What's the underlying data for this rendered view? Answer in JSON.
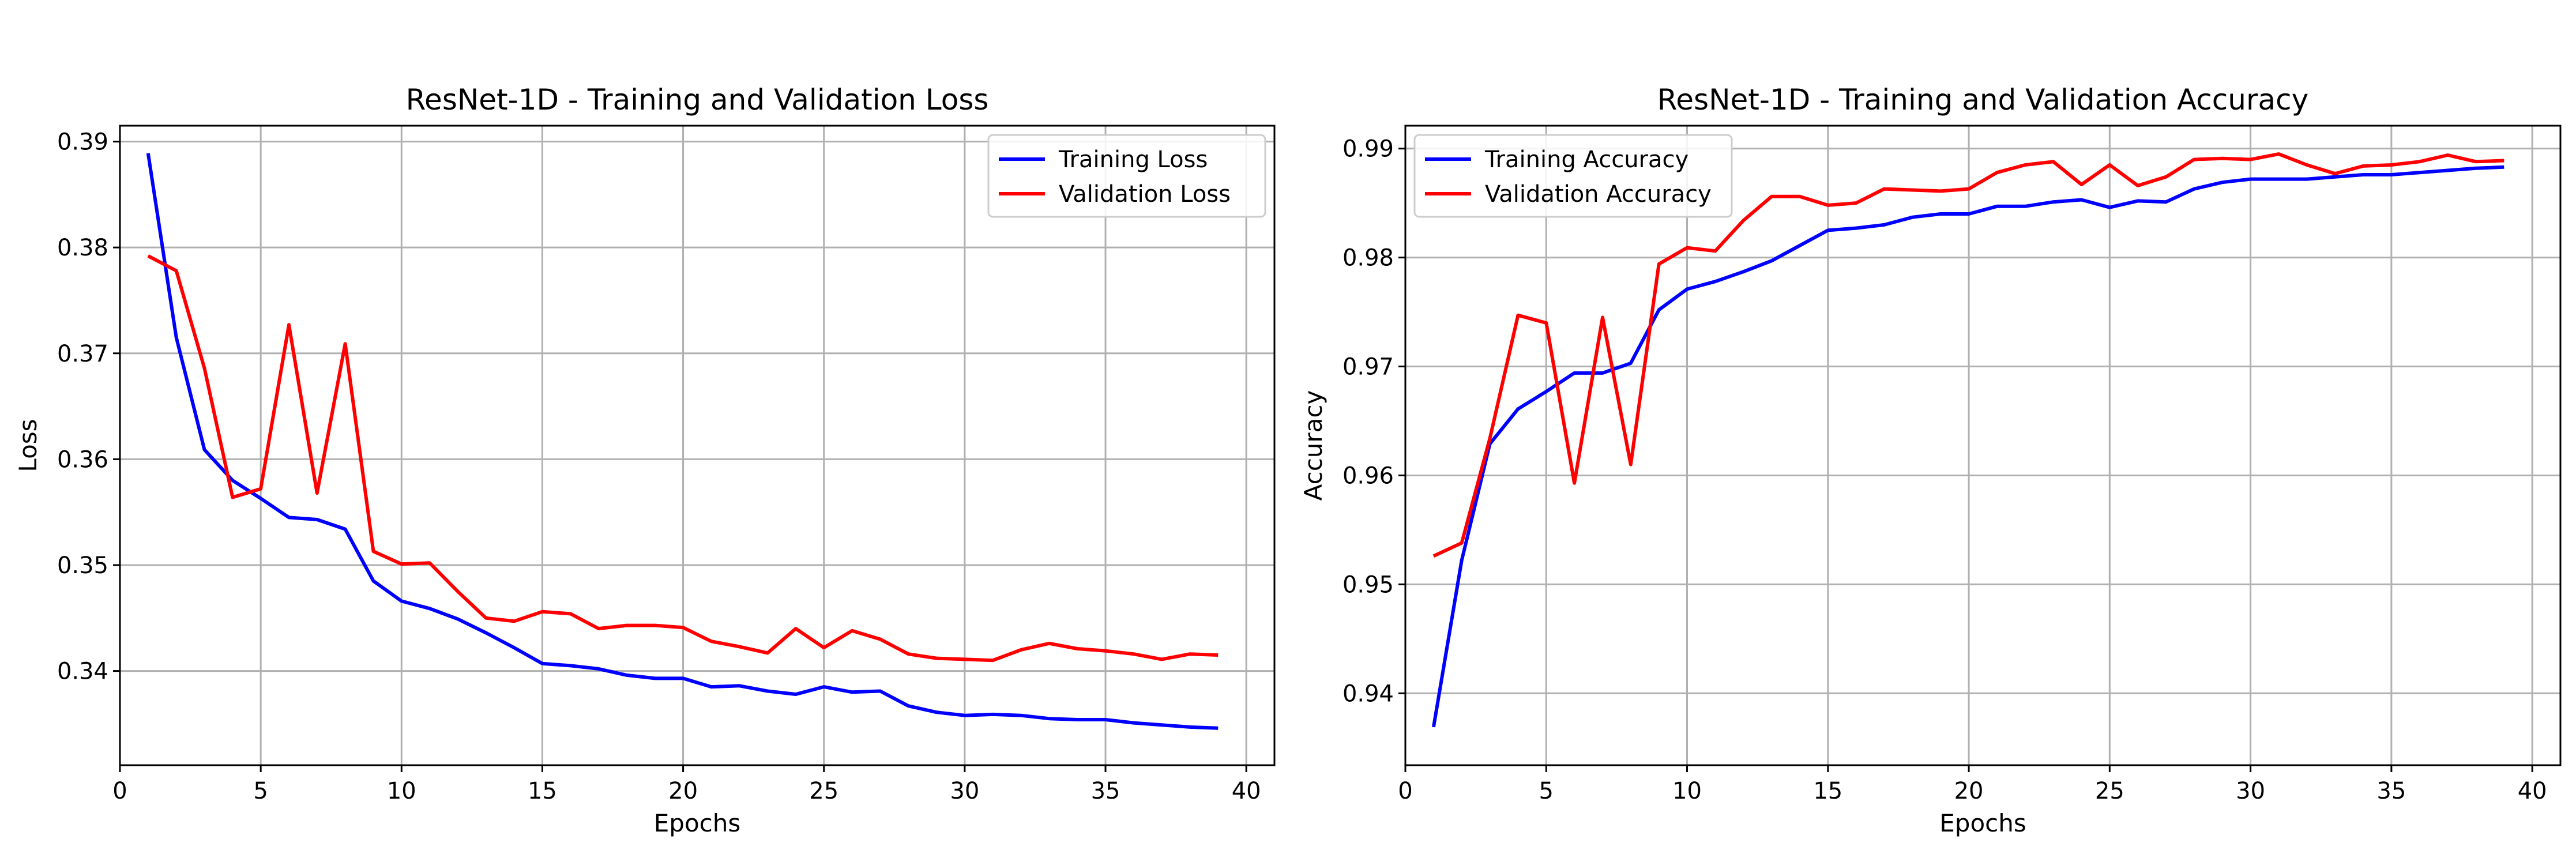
{
  "chart_data": [
    {
      "type": "line",
      "title": "ResNet-1D - Training and Validation Loss",
      "xlabel": "Epochs",
      "ylabel": "Loss",
      "xlim": [
        0,
        41
      ],
      "ylim": [
        0.3311,
        0.3915
      ],
      "xticks": [
        0,
        5,
        10,
        15,
        20,
        25,
        30,
        35,
        40
      ],
      "yticks": [
        0.34,
        0.35,
        0.36,
        0.37,
        0.38,
        0.39
      ],
      "ytick_labels": [
        "0.34",
        "0.35",
        "0.36",
        "0.37",
        "0.38",
        "0.39"
      ],
      "grid": true,
      "legend_position": "upper right",
      "x": [
        1,
        2,
        3,
        4,
        5,
        6,
        7,
        8,
        9,
        10,
        11,
        12,
        13,
        14,
        15,
        16,
        17,
        18,
        19,
        20,
        21,
        22,
        23,
        24,
        25,
        26,
        27,
        28,
        29,
        30,
        31,
        32,
        33,
        34,
        35,
        36,
        37,
        38,
        39
      ],
      "series": [
        {
          "name": "Training Loss",
          "color": "#0000ff",
          "values": [
            0.3889,
            0.3715,
            0.3609,
            0.358,
            0.3563,
            0.3545,
            0.3543,
            0.3534,
            0.3485,
            0.3466,
            0.3459,
            0.3449,
            0.3436,
            0.3422,
            0.3407,
            0.3405,
            0.3402,
            0.3396,
            0.3393,
            0.3393,
            0.3385,
            0.3386,
            0.3381,
            0.3378,
            0.3385,
            0.338,
            0.3381,
            0.3367,
            0.3361,
            0.3358,
            0.3359,
            0.3358,
            0.3355,
            0.3354,
            0.3354,
            0.3351,
            0.3349,
            0.3347,
            0.3346
          ]
        },
        {
          "name": "Validation Loss",
          "color": "#ff0000",
          "values": [
            0.3792,
            0.3778,
            0.3686,
            0.3564,
            0.3572,
            0.3727,
            0.3568,
            0.3709,
            0.3513,
            0.3501,
            0.3502,
            0.3475,
            0.345,
            0.3447,
            0.3456,
            0.3454,
            0.344,
            0.3443,
            0.3443,
            0.3441,
            0.3428,
            0.3423,
            0.3417,
            0.344,
            0.3422,
            0.3438,
            0.343,
            0.3416,
            0.3412,
            0.3411,
            0.341,
            0.342,
            0.3426,
            0.3421,
            0.3419,
            0.3416,
            0.3411,
            0.3416,
            0.3415
          ]
        }
      ]
    },
    {
      "type": "line",
      "title": "ResNet-1D - Training and Validation Accuracy",
      "xlabel": "Epochs",
      "ylabel": "Accuracy",
      "xlim": [
        0,
        41
      ],
      "ylim": [
        0.9334,
        0.9921
      ],
      "xticks": [
        0,
        5,
        10,
        15,
        20,
        25,
        30,
        35,
        40
      ],
      "yticks": [
        0.94,
        0.95,
        0.96,
        0.97,
        0.98,
        0.99
      ],
      "ytick_labels": [
        "0.94",
        "0.95",
        "0.96",
        "0.97",
        "0.98",
        "0.99"
      ],
      "grid": true,
      "legend_position": "upper left",
      "x": [
        1,
        2,
        3,
        4,
        5,
        6,
        7,
        8,
        9,
        10,
        11,
        12,
        13,
        14,
        15,
        16,
        17,
        18,
        19,
        20,
        21,
        22,
        23,
        24,
        25,
        26,
        27,
        28,
        29,
        30,
        31,
        32,
        33,
        34,
        35,
        36,
        37,
        38,
        39
      ],
      "series": [
        {
          "name": "Training Accuracy",
          "color": "#0000ff",
          "values": [
            0.9369,
            0.9522,
            0.9629,
            0.9661,
            0.9677,
            0.9694,
            0.9694,
            0.9703,
            0.9752,
            0.9771,
            0.9778,
            0.9787,
            0.9797,
            0.9811,
            0.9825,
            0.9827,
            0.983,
            0.9837,
            0.984,
            0.984,
            0.9847,
            0.9847,
            0.9851,
            0.9853,
            0.9846,
            0.9852,
            0.9851,
            0.9863,
            0.9869,
            0.9872,
            0.9872,
            0.9872,
            0.9874,
            0.9876,
            0.9876,
            0.9878,
            0.988,
            0.9882,
            0.9883
          ]
        },
        {
          "name": "Validation Accuracy",
          "color": "#ff0000",
          "values": [
            0.9526,
            0.9538,
            0.9634,
            0.9747,
            0.974,
            0.9593,
            0.9745,
            0.961,
            0.9794,
            0.9809,
            0.9806,
            0.9834,
            0.9856,
            0.9856,
            0.9848,
            0.985,
            0.9863,
            0.9862,
            0.9861,
            0.9863,
            0.9878,
            0.9885,
            0.9888,
            0.9867,
            0.9885,
            0.9866,
            0.9874,
            0.989,
            0.9891,
            0.989,
            0.9895,
            0.9885,
            0.9877,
            0.9884,
            0.9885,
            0.9888,
            0.9894,
            0.9888,
            0.9889
          ]
        }
      ]
    }
  ]
}
